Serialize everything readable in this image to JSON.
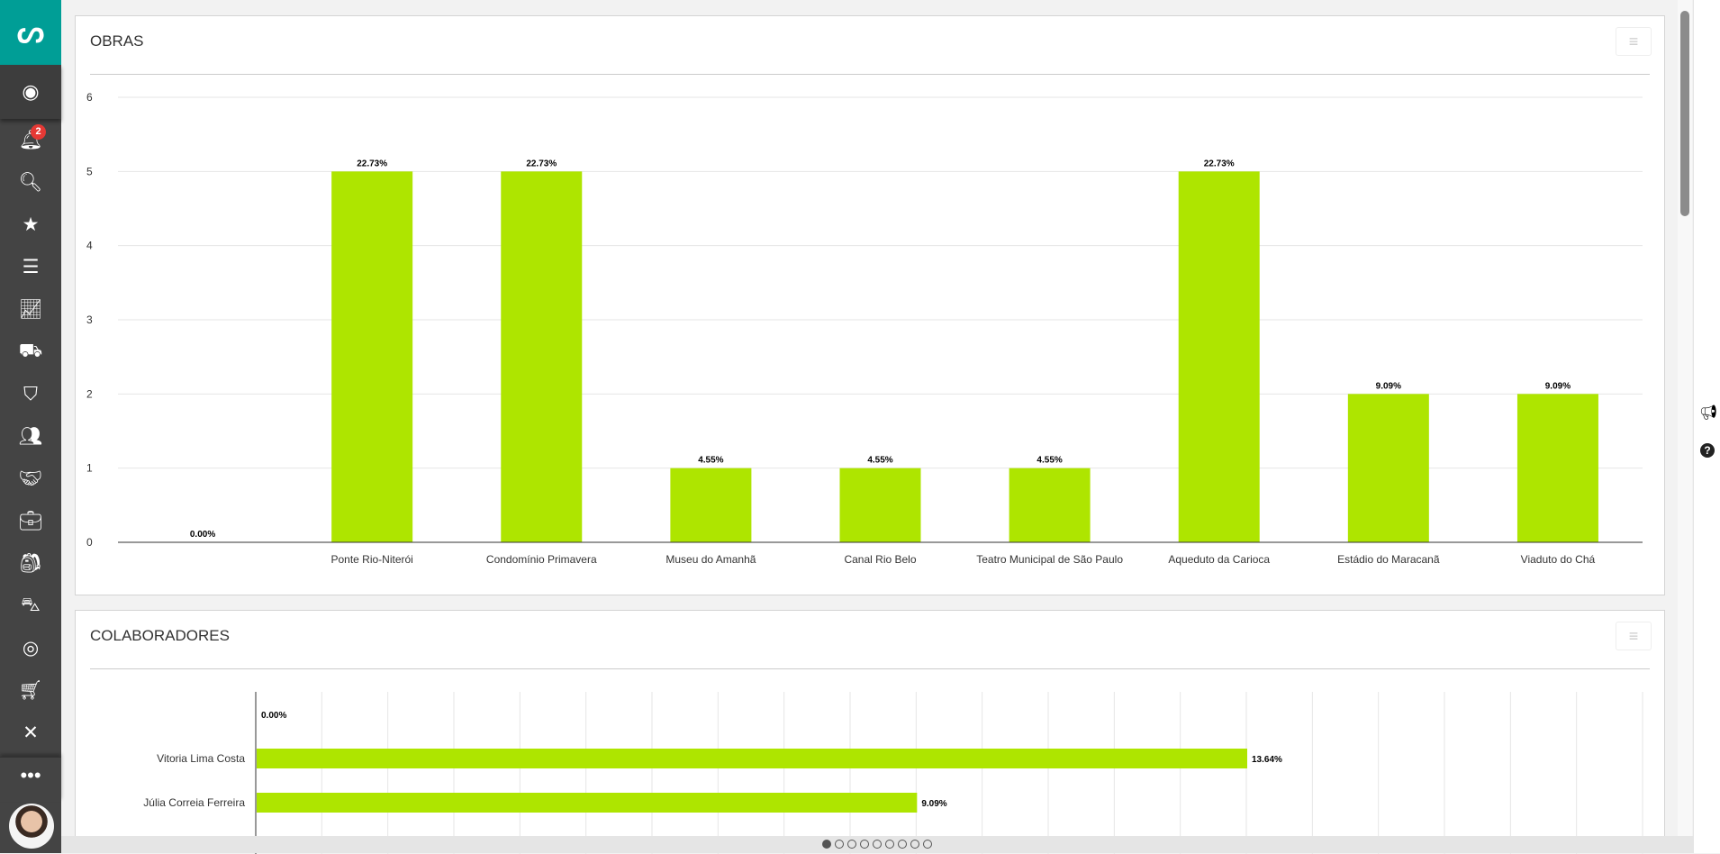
{
  "sidebar": {
    "notification_count": "2",
    "items": [
      "profile",
      "notifications",
      "search",
      "favorites",
      "layers",
      "reports",
      "machinery",
      "security",
      "team",
      "partners",
      "briefcase",
      "backpack",
      "forklift",
      "goals",
      "cart",
      "tools"
    ],
    "more": "•••"
  },
  "colors": {
    "bar": "#aee500",
    "brand": "#009e96",
    "sidebar": "#444444"
  },
  "cards": {
    "obras_title": "OBRAS",
    "colab_title": "COLABORADORES",
    "menu_icon": "≡"
  },
  "chart_data": [
    {
      "type": "bar",
      "title": "OBRAS",
      "categories": [
        "",
        "Ponte Rio-Niterói",
        "Condomínio Primavera",
        "Museu do Amanhã",
        "Canal Rio Belo",
        "Teatro Municipal de São Paulo",
        "Aqueduto da Carioca",
        "Estádio do Maracanã",
        "Viaduto do Chá"
      ],
      "values": [
        0,
        5,
        5,
        1,
        1,
        1,
        5,
        2,
        2
      ],
      "labels": [
        "0.00%",
        "22.73%",
        "22.73%",
        "4.55%",
        "4.55%",
        "4.55%",
        "22.73%",
        "9.09%",
        "9.09%"
      ],
      "yticks": [
        "0",
        "1",
        "2",
        "3",
        "4",
        "5",
        "6"
      ],
      "ylim": [
        0,
        6
      ],
      "grid": true
    },
    {
      "type": "bar",
      "orientation": "horizontal",
      "title": "COLABORADORES",
      "categories": [
        "",
        "Vitoria Lima Costa",
        "Júlia Correia Ferreira"
      ],
      "values": [
        0,
        3,
        2
      ],
      "labels": [
        "0.00%",
        "13.64%",
        "9.09%"
      ],
      "xlim": [
        0,
        4.2
      ],
      "grid": true
    }
  ],
  "pagination": {
    "pages": 9,
    "current": 1
  }
}
